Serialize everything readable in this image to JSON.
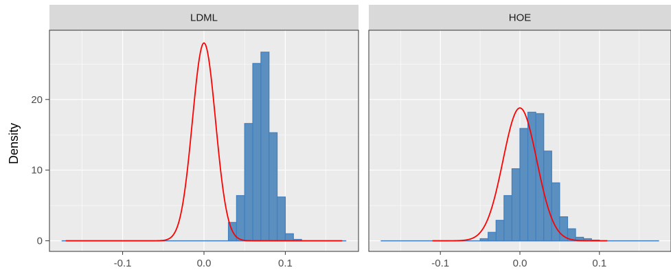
{
  "chart_data": {
    "type": "bar",
    "ylabel": "Density",
    "xlabel": "",
    "xlim": [
      -0.19,
      0.19
    ],
    "ylim": [
      -1.5,
      29.8
    ],
    "x_ticks": [
      -0.1,
      0.0,
      0.1
    ],
    "x_tick_labels": [
      "-0.1",
      "0.0",
      "0.1"
    ],
    "y_ticks": [
      0,
      10,
      20
    ],
    "y_tick_labels": [
      "0",
      "10",
      "20"
    ],
    "grid": true,
    "legend": "none",
    "colors": {
      "bar_fill": "#5b8fc0",
      "bar_stroke": "#3f7fbf",
      "curve": "#ff0000",
      "panel_bg": "#ebebeb",
      "grid": "#ffffff",
      "strip_bg": "#d9d9d9"
    },
    "panels": [
      {
        "title": "LDML",
        "bin_width": 0.01,
        "baseline_range": [
          -0.175,
          0.175
        ],
        "bins": [
          {
            "x": 0.035,
            "y": 2.6
          },
          {
            "x": 0.045,
            "y": 6.4
          },
          {
            "x": 0.055,
            "y": 16.6
          },
          {
            "x": 0.065,
            "y": 25.1
          },
          {
            "x": 0.075,
            "y": 26.7
          },
          {
            "x": 0.085,
            "y": 15.3
          },
          {
            "x": 0.095,
            "y": 6.2
          },
          {
            "x": 0.105,
            "y": 1.0
          },
          {
            "x": 0.115,
            "y": 0.2
          }
        ],
        "curve": {
          "mean": 0.0,
          "peak_density": 28.0,
          "range": [
            -0.17,
            0.17
          ]
        }
      },
      {
        "title": "HOE",
        "bin_width": 0.01,
        "baseline_range": [
          -0.175,
          0.175
        ],
        "bins": [
          {
            "x": -0.045,
            "y": 0.3
          },
          {
            "x": -0.035,
            "y": 1.2
          },
          {
            "x": -0.025,
            "y": 2.9
          },
          {
            "x": -0.015,
            "y": 6.4
          },
          {
            "x": -0.005,
            "y": 10.2
          },
          {
            "x": 0.005,
            "y": 15.9
          },
          {
            "x": 0.015,
            "y": 18.2
          },
          {
            "x": 0.025,
            "y": 18.0
          },
          {
            "x": 0.035,
            "y": 12.7
          },
          {
            "x": 0.045,
            "y": 8.2
          },
          {
            "x": 0.055,
            "y": 3.4
          },
          {
            "x": 0.065,
            "y": 1.7
          },
          {
            "x": 0.075,
            "y": 0.5
          },
          {
            "x": 0.085,
            "y": 0.3
          },
          {
            "x": 0.095,
            "y": 0.1
          }
        ],
        "curve": {
          "mean": 0.0,
          "peak_density": 18.8,
          "range": [
            -0.11,
            0.11
          ]
        }
      }
    ]
  }
}
